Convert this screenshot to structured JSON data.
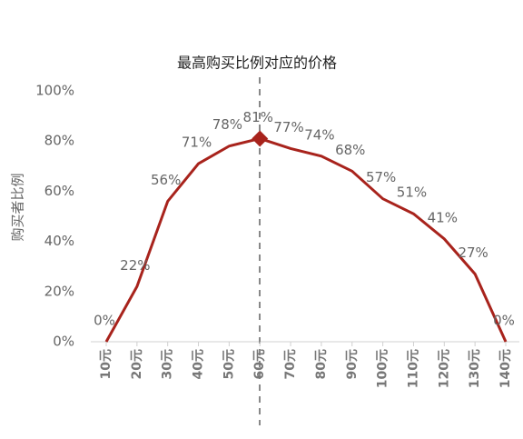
{
  "chart_data": {
    "type": "line",
    "title": "最高购买比例对应的价格",
    "y_label": "购买者比例",
    "categories": [
      "10元",
      "20元",
      "30元",
      "40元",
      "50元",
      "60元",
      "70元",
      "80元",
      "90元",
      "100元",
      "110元",
      "120元",
      "130元",
      "140元"
    ],
    "series": [
      {
        "name": "购买者比例",
        "color": "#a8231c",
        "values": [
          0,
          22,
          56,
          71,
          78,
          81,
          77,
          74,
          68,
          57,
          51,
          41,
          27,
          0
        ],
        "value_labels": [
          "0%",
          "22%",
          "56%",
          "71%",
          "78%",
          "81%",
          "77%",
          "74%",
          "68%",
          "57%",
          "51%",
          "41%",
          "27%",
          "0%"
        ]
      }
    ],
    "ylim": [
      0,
      100
    ],
    "yticks": [
      {
        "value": 0,
        "label": "0%"
      },
      {
        "value": 20,
        "label": "20%"
      },
      {
        "value": 40,
        "label": "40%"
      },
      {
        "value": 60,
        "label": "60%"
      },
      {
        "value": 80,
        "label": "80%"
      },
      {
        "value": 100,
        "label": "100%"
      }
    ]
  }
}
